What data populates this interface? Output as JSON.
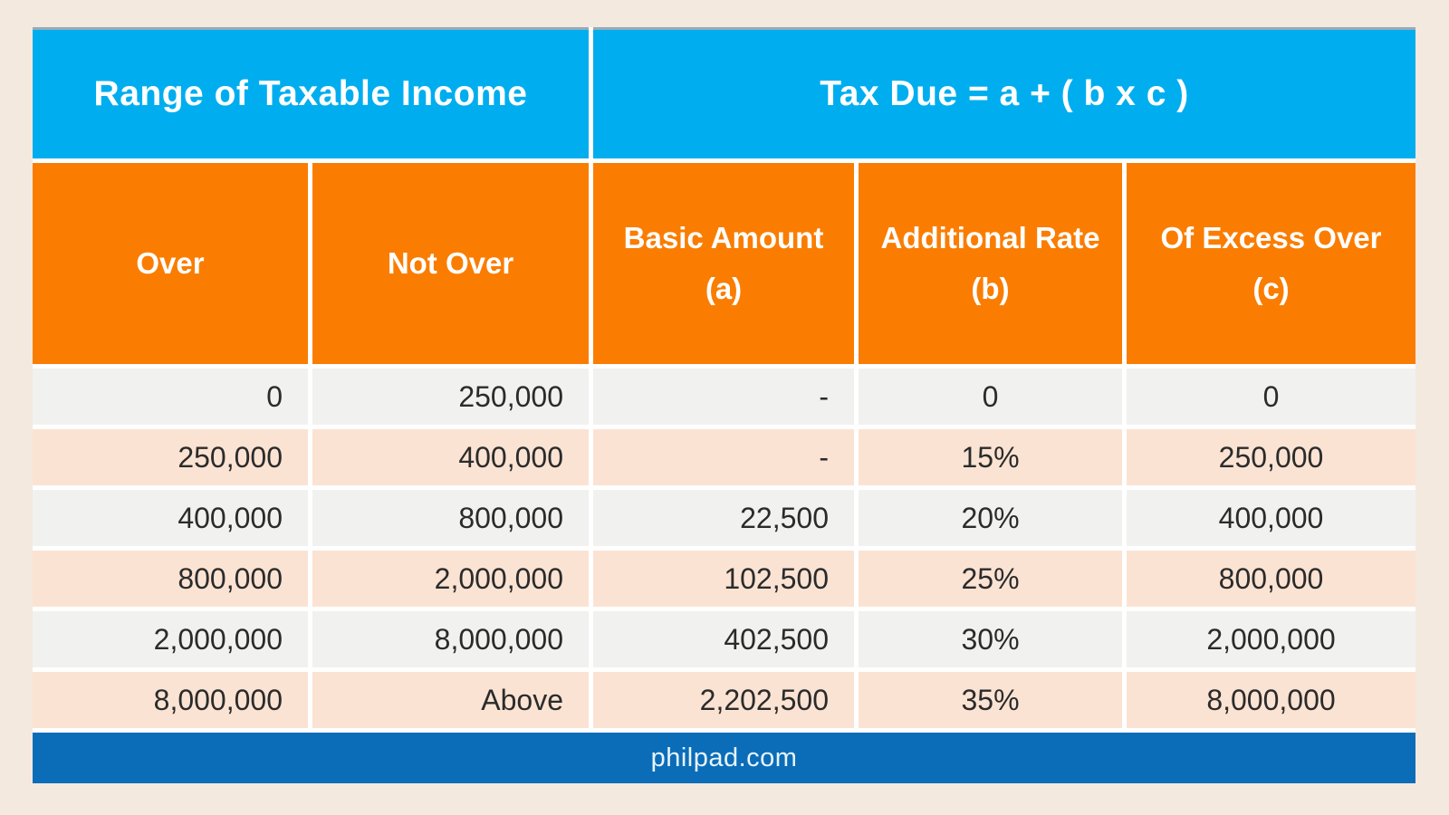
{
  "table": {
    "top_header": [
      {
        "label": "Range of Taxable Income"
      },
      {
        "label": "Tax Due = a + ( b x c )"
      }
    ],
    "columns": [
      {
        "label": "Over",
        "sub": ""
      },
      {
        "label": "Not Over",
        "sub": ""
      },
      {
        "label": "Basic Amount",
        "sub": "(a)"
      },
      {
        "label": "Additional Rate",
        "sub": "(b)"
      },
      {
        "label": "Of Excess Over",
        "sub": "(c)"
      }
    ],
    "rows": [
      [
        "0",
        "250,000",
        "-",
        "0",
        "0"
      ],
      [
        "250,000",
        "400,000",
        "-",
        "15%",
        "250,000"
      ],
      [
        "400,000",
        "800,000",
        "22,500",
        "20%",
        "400,000"
      ],
      [
        "800,000",
        "2,000,000",
        "102,500",
        "25%",
        "800,000"
      ],
      [
        "2,000,000",
        "8,000,000",
        "402,500",
        "30%",
        "2,000,000"
      ],
      [
        "8,000,000",
        "Above",
        "2,202,500",
        "35%",
        "8,000,000"
      ]
    ],
    "footer": "philpad.com",
    "colors": {
      "header_blue": "#00aeef",
      "header_orange": "#fa7d01",
      "row_gray": "#f1f1f0",
      "row_peach": "#fbe3d3",
      "footer_blue": "#0b6db8",
      "page_background": "#f4e9de",
      "data_text": "#2b2b2b",
      "header_text": "#ffffff"
    }
  }
}
